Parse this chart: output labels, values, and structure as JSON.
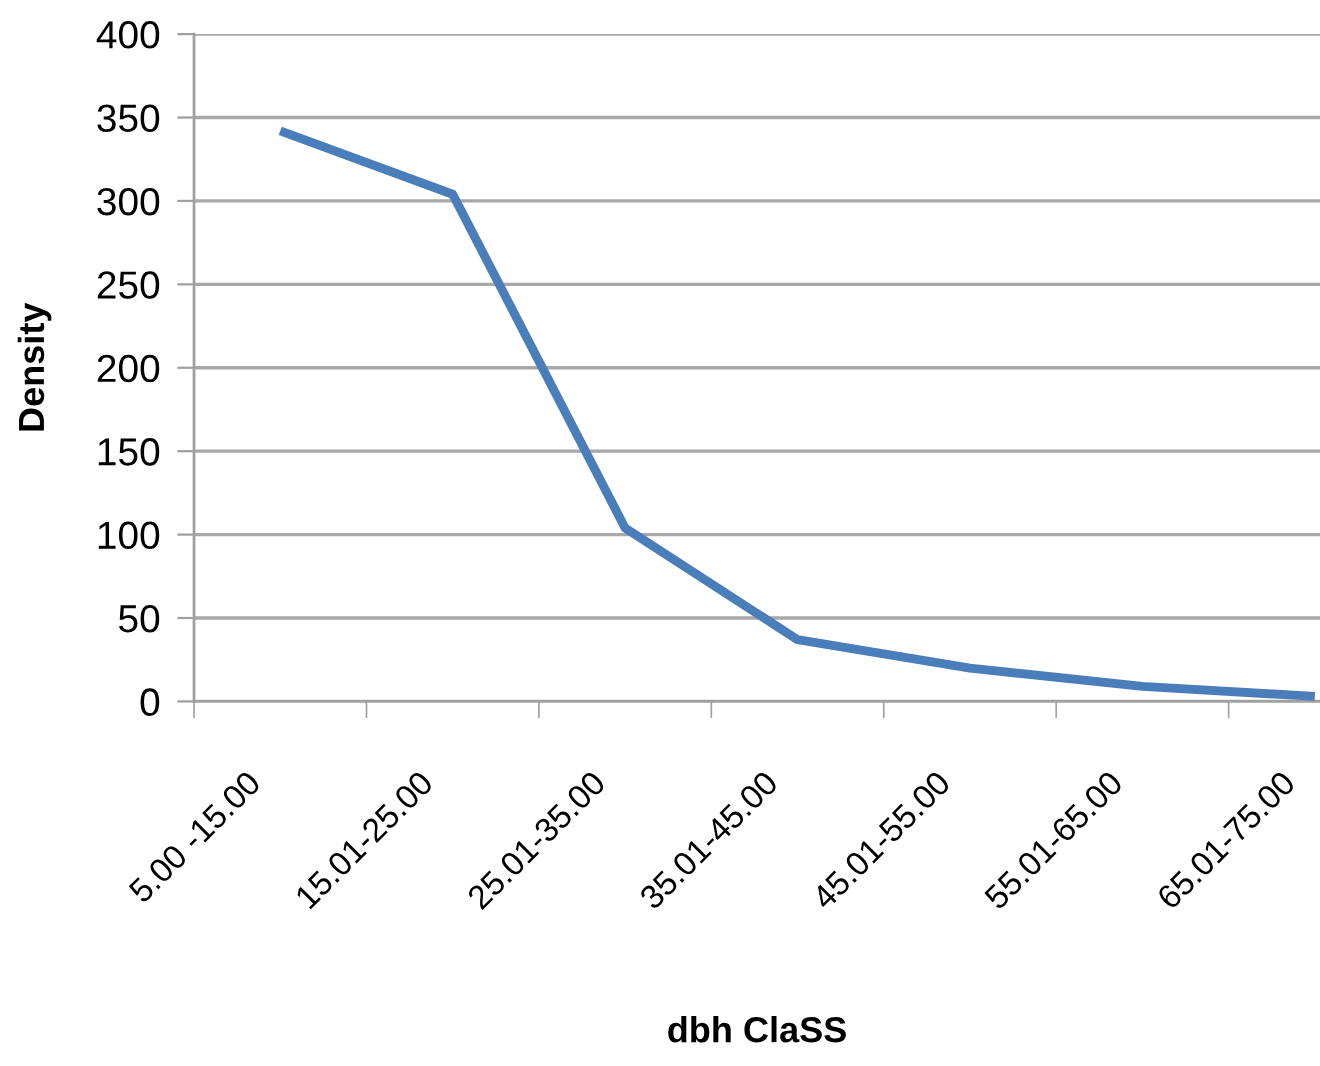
{
  "chart_data": {
    "type": "line",
    "xlabel": "dbh ClaSS",
    "ylabel": "Density",
    "categories": [
      "5.00 -15.00",
      "15.01-25.00",
      "25.01-35.00",
      "35.01-45.00",
      "45.01-55.00",
      "55.01-65.00",
      "65.01-75.00"
    ],
    "series": [
      {
        "color": "#4a7ebb",
        "values": [
          342,
          304,
          104,
          37,
          20,
          9,
          3
        ]
      }
    ],
    "ylim": [
      0,
      400
    ],
    "yticks": [
      0,
      50,
      100,
      150,
      200,
      250,
      300,
      350,
      400
    ],
    "grid": "y",
    "marker": "none",
    "line_style": "solid"
  }
}
